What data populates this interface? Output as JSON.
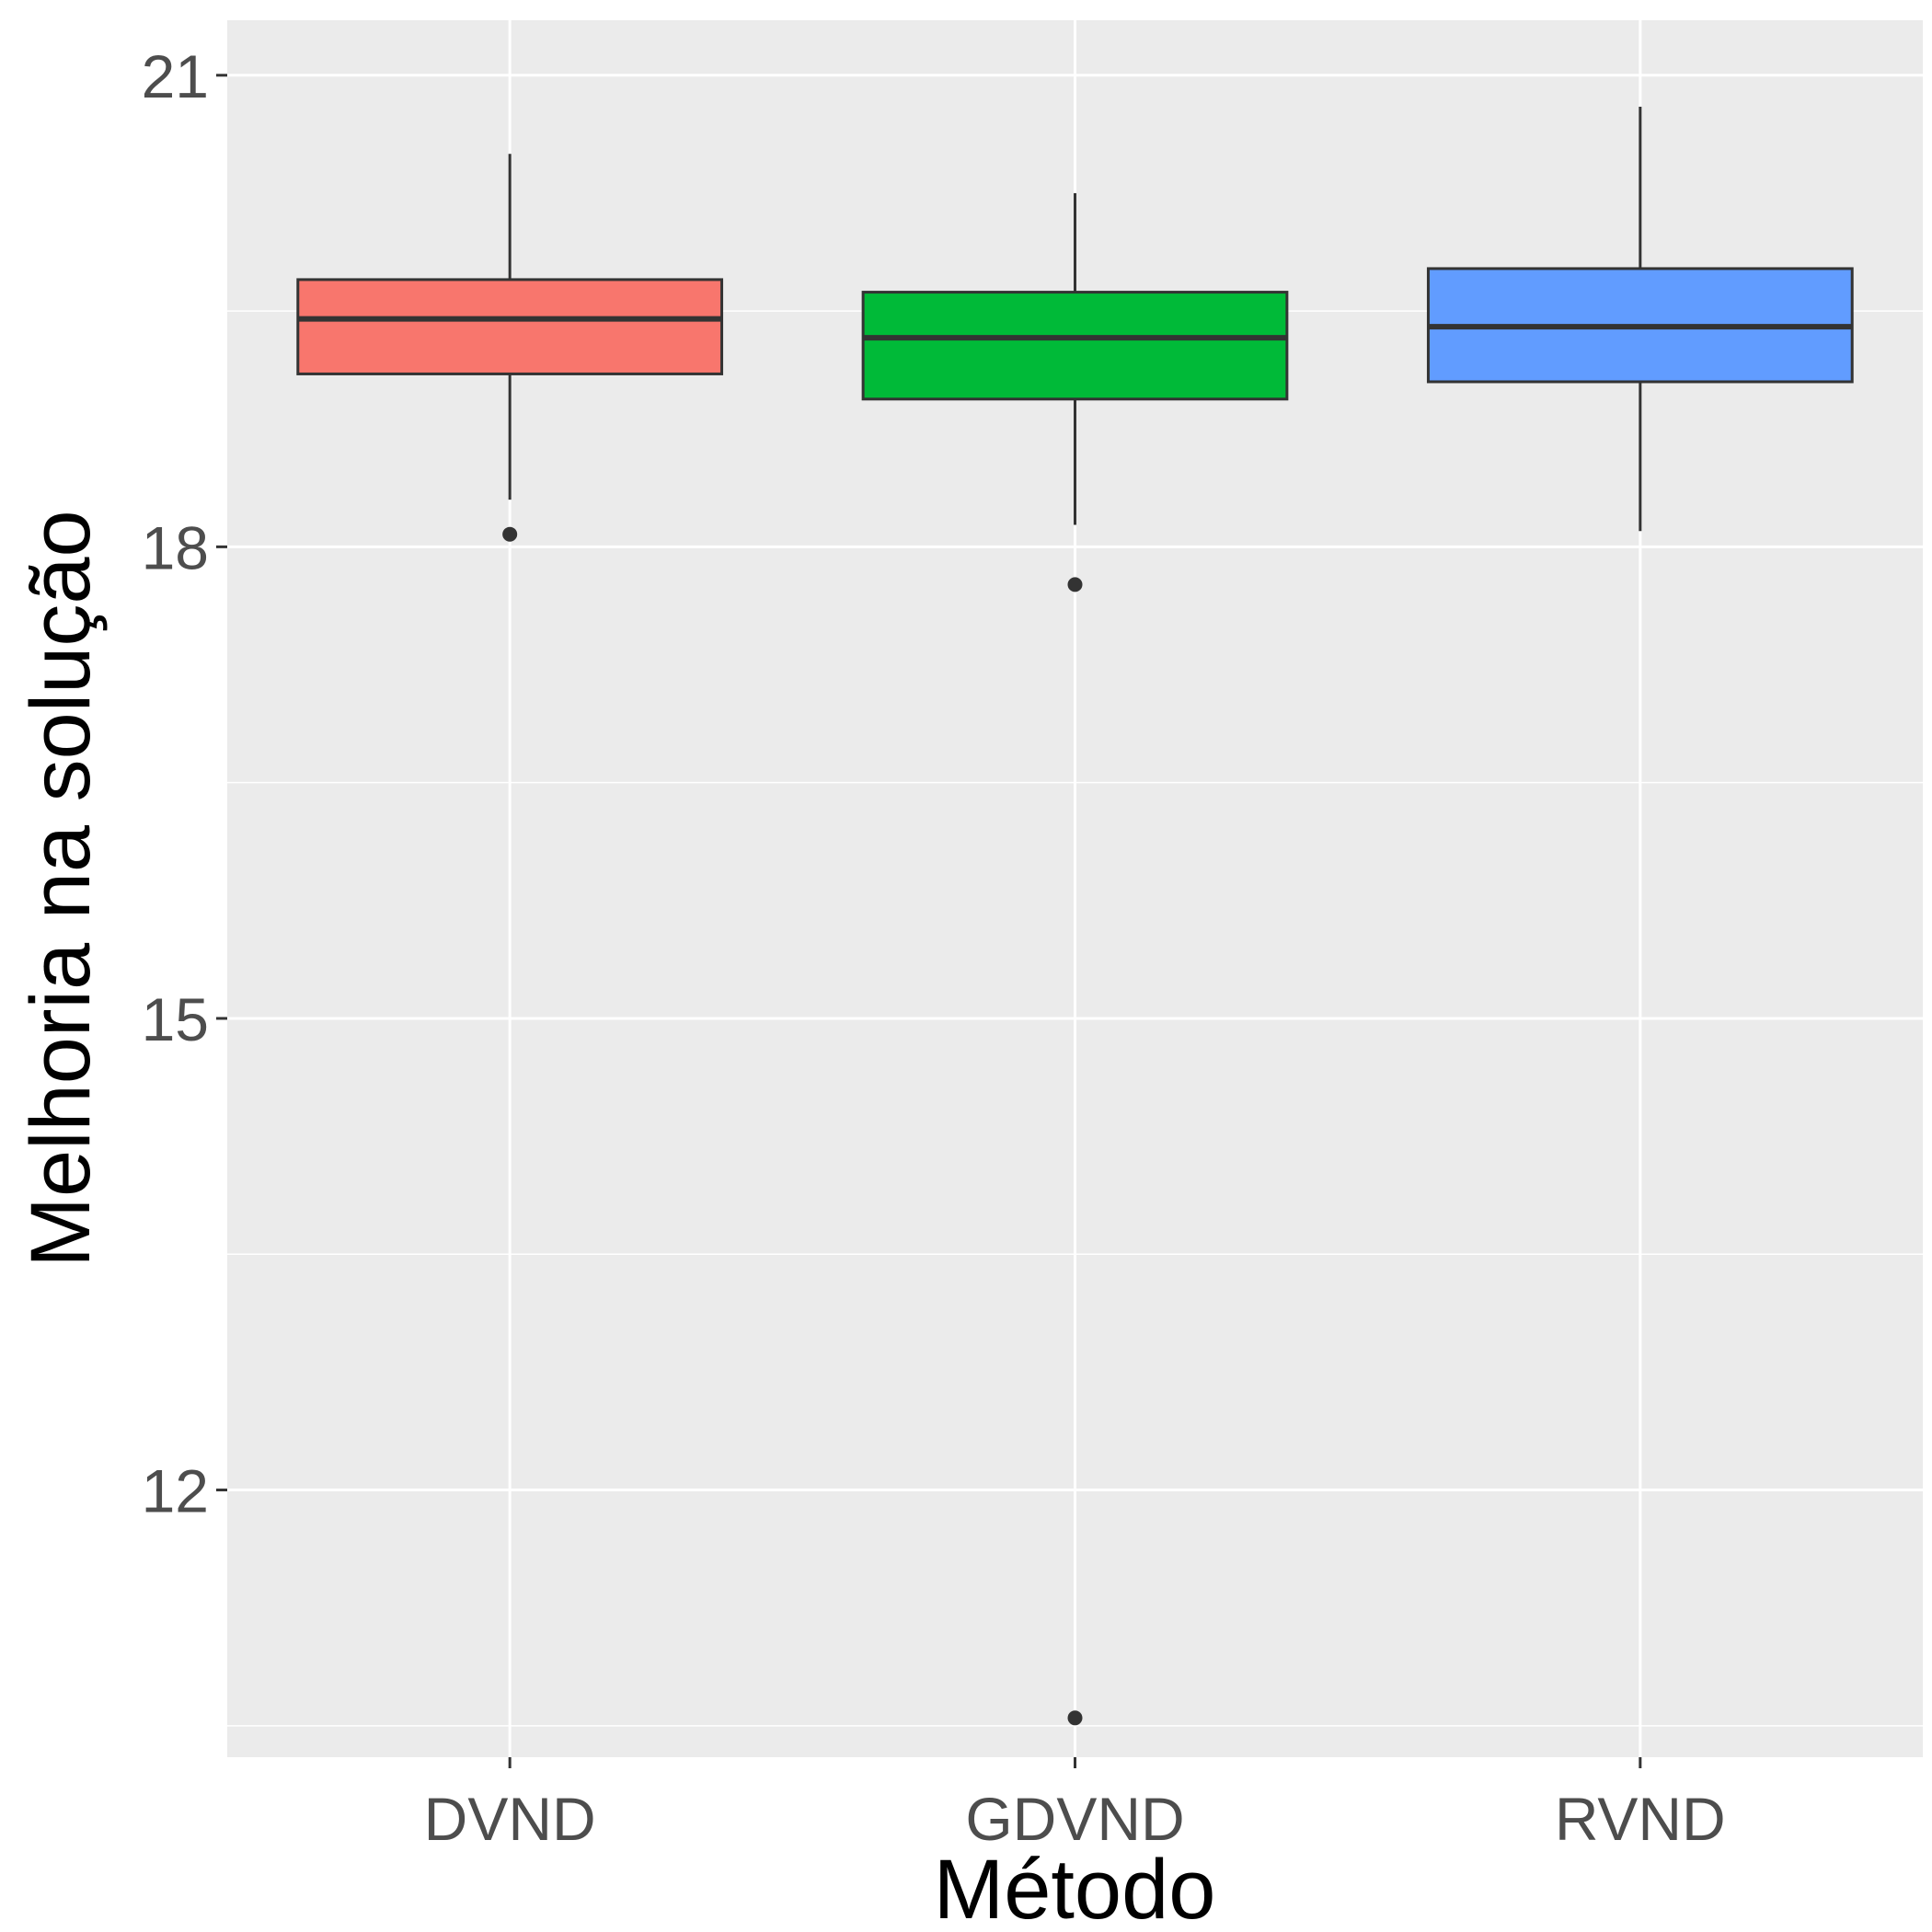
{
  "chart_data": {
    "type": "boxplot",
    "xlabel": "Método",
    "ylabel": "Melhoria na solução",
    "ylim": [
      10.3,
      21.35
    ],
    "yticks": [
      12,
      15,
      18,
      21
    ],
    "y_minor_ticks": [
      10.5,
      13.5,
      16.5,
      19.5
    ],
    "categories": [
      "DVND",
      "GDVND",
      "RVND"
    ],
    "boxes": [
      {
        "category": "DVND",
        "whisker_low": 18.3,
        "q1": 19.1,
        "median": 19.45,
        "q3": 19.7,
        "whisker_high": 20.5,
        "outliers": [
          18.08
        ],
        "color": "#F8766D"
      },
      {
        "category": "GDVND",
        "whisker_low": 18.14,
        "q1": 18.94,
        "median": 19.33,
        "q3": 19.62,
        "whisker_high": 20.25,
        "outliers": [
          17.76,
          10.55
        ],
        "color": "#00BA38"
      },
      {
        "category": "RVND",
        "whisker_low": 18.1,
        "q1": 19.05,
        "median": 19.4,
        "q3": 19.77,
        "whisker_high": 20.8,
        "outliers": [],
        "color": "#619CFF"
      }
    ],
    "grid": true,
    "panel_background": "#EBEBEB",
    "grid_color": "#FFFFFF",
    "legend": "none"
  }
}
